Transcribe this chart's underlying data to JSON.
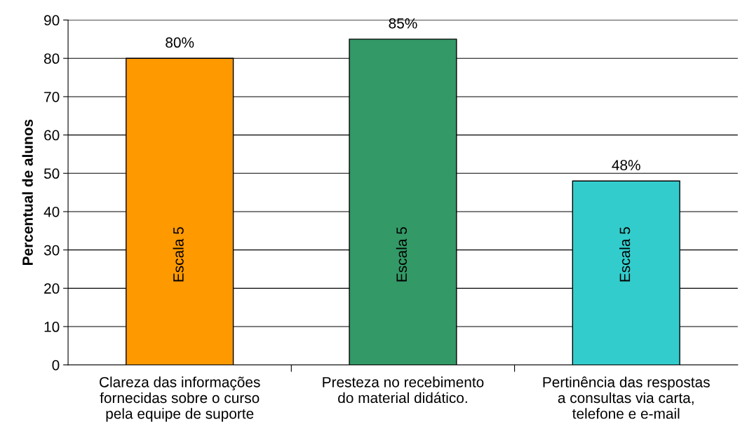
{
  "chart_data": {
    "type": "bar",
    "ylabel": "Percentual de alunos",
    "categories": [
      "Clareza das informações\nfornecidas sobre o curso\npela equipe de suporte",
      "Presteza no recebimento\ndo material didático.",
      "Pertinência das respostas\na consultas via carta,\ntelefone e e-mail"
    ],
    "values": [
      80,
      85,
      48
    ],
    "colors": [
      "#ff9900",
      "#339966",
      "#33cccc"
    ],
    "value_labels": [
      "80%",
      "85%",
      "48%"
    ],
    "ylim": [
      0,
      90
    ],
    "yticks": [
      0,
      10,
      20,
      30,
      40,
      50,
      60,
      70,
      80,
      90
    ],
    "grid": "y",
    "legend": false,
    "annotations": [
      "Escala 5",
      "Escala 5",
      "Escala 5"
    ]
  }
}
